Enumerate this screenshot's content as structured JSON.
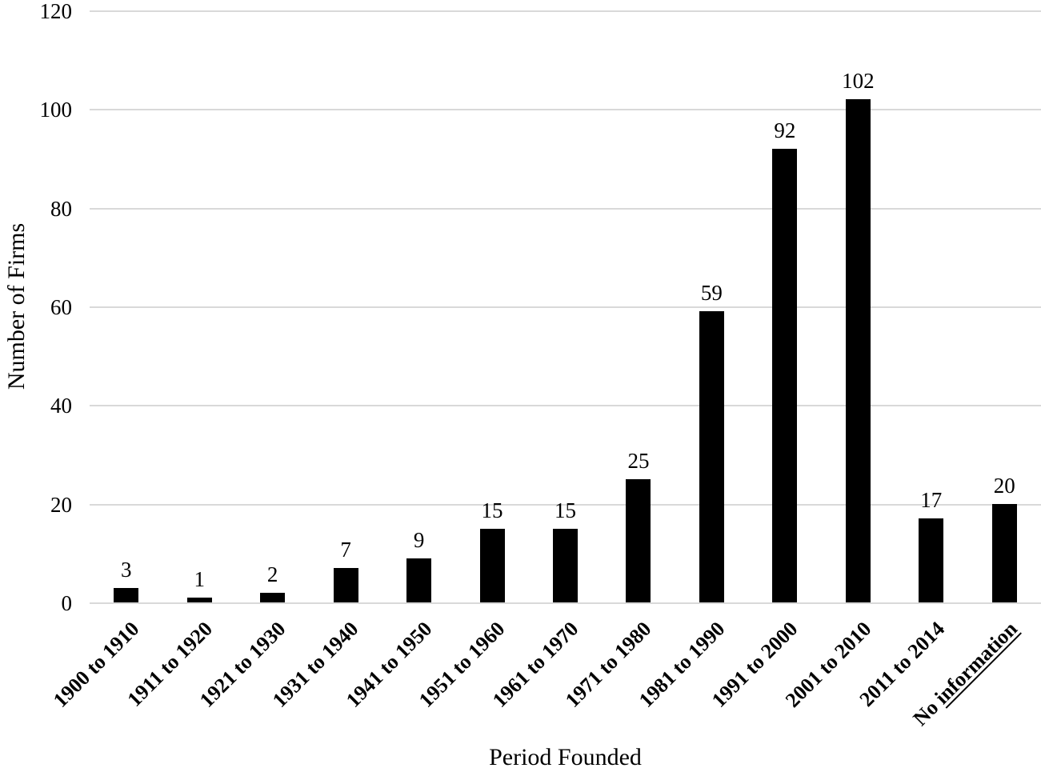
{
  "chart_data": {
    "type": "bar",
    "title": "",
    "xlabel": "Period Founded",
    "ylabel": "Number of Firms",
    "categories": [
      "1900 to 1910",
      "1911 to 1920",
      "1921 to 1930",
      "1931 to 1940",
      "1941 to 1950",
      "1951 to 1960",
      "1961 to 1970",
      "1971 to 1980",
      "1981 to 1990",
      "1991 to 2000",
      "2001 to 2010",
      "2011 to 2014",
      "No information"
    ],
    "values": [
      3,
      1,
      2,
      7,
      9,
      15,
      15,
      25,
      59,
      92,
      102,
      17,
      20
    ],
    "value_labels": [
      "3",
      "1",
      "2",
      "7",
      "9",
      "15",
      "15",
      "25",
      "59",
      "92",
      "102",
      "17",
      "20"
    ],
    "ylim": [
      0,
      120
    ],
    "yticks": [
      0,
      20,
      40,
      60,
      80,
      100,
      120
    ],
    "grid": "horizontal",
    "legend": "none",
    "x_tick_rotation_degrees": 45,
    "x_tick_underline": {
      "index": 12,
      "substring": "information"
    },
    "colors": {
      "bar": "#000000",
      "gridline": "#d9d9d9",
      "background": "#ffffff",
      "text": "#000000"
    }
  }
}
